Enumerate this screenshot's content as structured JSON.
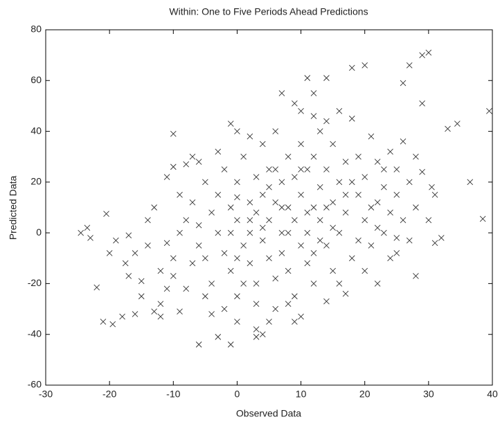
{
  "chart_data": {
    "type": "scatter",
    "title": "Within: One to Five Periods Ahead Predictions",
    "x_label": "Observed Data",
    "y_label": "Predicted Data",
    "color": "#333333",
    "xlim": [
      -30,
      40
    ],
    "xticks": [
      -30,
      -20,
      -10,
      0,
      10,
      20,
      30,
      40
    ],
    "ylim": [
      -60,
      80
    ],
    "yticks": [
      -60,
      -40,
      -20,
      0,
      20,
      40,
      60,
      80
    ],
    "x": [
      -24.5,
      -23.5,
      -23,
      -22,
      -21,
      -20.5,
      -19.5,
      -19,
      -17.5,
      -17,
      -17,
      -16,
      -15,
      -14,
      -13,
      -12,
      -11,
      -10,
      -10,
      -9,
      -8,
      -6,
      -3,
      -1,
      -1,
      0,
      3,
      7,
      9,
      11,
      12,
      14,
      18,
      20,
      26,
      27,
      30,
      29,
      29,
      33,
      34.5,
      39.5,
      36.5,
      38.5,
      31,
      32,
      30.5,
      25,
      28,
      22,
      17,
      14,
      10,
      5,
      4,
      3,
      -8,
      -7,
      -6,
      -5,
      -5,
      -4,
      -4,
      -3,
      -3,
      -2,
      -2,
      -1,
      -1,
      0,
      0,
      0,
      1,
      1,
      2,
      2,
      2,
      3,
      3,
      3,
      4,
      4,
      4,
      5,
      5,
      5,
      6,
      6,
      6,
      7,
      7,
      7,
      8,
      8,
      8,
      9,
      9,
      9,
      10,
      10,
      10,
      11,
      11,
      11,
      12,
      12,
      12,
      13,
      13,
      13,
      14,
      14,
      15,
      15,
      15,
      16,
      16,
      17,
      17,
      18,
      18,
      19,
      19,
      20,
      20,
      21,
      21,
      22,
      22,
      23,
      23,
      24,
      24,
      25,
      25,
      26,
      26,
      27,
      27,
      28,
      28,
      29,
      30,
      31,
      16,
      14,
      10,
      6,
      8,
      0,
      -2,
      -5,
      -10,
      -12,
      -14,
      -9,
      -11,
      -13,
      -7,
      -6,
      -3,
      1,
      2,
      -15,
      -18,
      -16,
      -12,
      -8,
      20,
      24,
      12,
      3,
      9,
      5,
      7,
      11,
      13,
      15,
      17,
      19,
      21,
      23,
      25,
      4,
      6,
      0,
      -1,
      2,
      8,
      10,
      14,
      18,
      22,
      -4,
      0,
      16,
      12,
      -6,
      -9,
      -11,
      -20,
      -10,
      -7
    ],
    "values": [
      0,
      2,
      -2,
      -21.5,
      -35,
      7.5,
      -36,
      -3,
      -12,
      -17,
      -1,
      -8,
      -19,
      5,
      -31,
      -33,
      -4,
      39,
      -17,
      -31,
      27,
      -44,
      -41,
      -44,
      43,
      40,
      -41,
      55,
      51,
      61,
      46,
      61,
      65,
      66,
      59,
      66,
      71,
      70,
      51,
      41,
      43,
      48,
      20,
      5.5,
      -4,
      -2,
      18,
      -8,
      -17,
      -20,
      -24,
      -27,
      -33,
      -35,
      -40,
      -38,
      5,
      12,
      -5,
      20,
      -10,
      8,
      -20,
      15,
      0,
      -8,
      25,
      10,
      -15,
      5,
      20,
      -25,
      -5,
      30,
      12,
      -12,
      0,
      22,
      -20,
      8,
      -3,
      35,
      15,
      -10,
      25,
      5,
      -18,
      12,
      40,
      0,
      20,
      -8,
      30,
      10,
      -15,
      5,
      22,
      -25,
      15,
      -5,
      35,
      25,
      0,
      -12,
      10,
      30,
      -20,
      18,
      5,
      40,
      -5,
      25,
      12,
      -15,
      35,
      20,
      0,
      28,
      8,
      45,
      -10,
      15,
      30,
      5,
      22,
      -5,
      38,
      12,
      28,
      0,
      18,
      32,
      8,
      15,
      25,
      5,
      36,
      20,
      -3,
      30,
      10,
      24,
      5,
      15,
      48,
      44,
      48,
      -30,
      -28,
      -35,
      -30,
      -25,
      -10,
      -15,
      -5,
      15,
      22,
      10,
      -12,
      28,
      32,
      -20,
      38,
      -25,
      -33,
      -32,
      -28,
      -22,
      -15,
      -10,
      -8,
      -28,
      -35,
      18,
      10,
      8,
      -3,
      2,
      15,
      -3,
      10,
      25,
      -2,
      2,
      25,
      -10,
      0,
      5,
      0,
      25,
      10,
      20,
      2,
      -32,
      14,
      -20,
      55,
      3,
      0,
      -22,
      -8,
      26,
      30
    ]
  }
}
